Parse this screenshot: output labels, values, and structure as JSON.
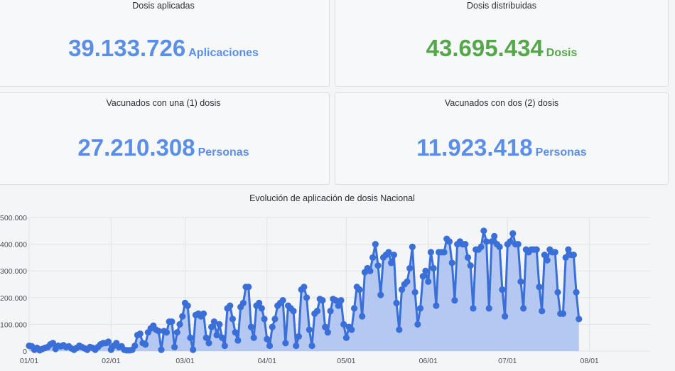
{
  "stats": {
    "applied": {
      "title": "Dosis aplicadas",
      "value": "39.133.726",
      "unit": "Aplicaciones",
      "color": "#5b8ee6"
    },
    "distributed": {
      "title": "Dosis distribuidas",
      "value": "43.695.434",
      "unit": "Dosis",
      "color": "#56a64b"
    },
    "one_dose": {
      "title": "Vacunados con una (1) dosis",
      "value": "27.210.308",
      "unit": "Personas",
      "color": "#5b8ee6"
    },
    "two_doses": {
      "title": "Vacunados con dos (2) dosis",
      "value": "11.923.418",
      "unit": "Personas",
      "color": "#5b8ee6"
    }
  },
  "chart_data": {
    "type": "area",
    "title": "Evolución de aplicación de dosis Nacional",
    "xlabel": "",
    "ylabel": "",
    "ylim": [
      0,
      500000
    ],
    "yticks": [
      0,
      100000,
      200000,
      300000,
      400000,
      500000
    ],
    "ytick_labels": [
      "0",
      "100.000",
      "200.000",
      "300.000",
      "400.000",
      "500.000"
    ],
    "xtick_labels": [
      "01/01",
      "02/01",
      "03/01",
      "04/01",
      "05/01",
      "06/01",
      "07/01",
      "08/01"
    ],
    "xtick_days": [
      0,
      31,
      59,
      90,
      120,
      151,
      181,
      212
    ],
    "grid": true,
    "legend": "none",
    "line_color": "#3a6fd8",
    "fill_color": "#a9bff0",
    "series": [
      {
        "values": [
          20000,
          18000,
          5000,
          12000,
          3000,
          8000,
          12000,
          15000,
          25000,
          30000,
          8000,
          20000,
          18000,
          22000,
          15000,
          18000,
          10000,
          5000,
          12000,
          20000,
          15000,
          10000,
          5000,
          15000,
          12000,
          5000,
          15000,
          25000,
          30000,
          30000,
          35000,
          5000,
          20000,
          30000,
          15000,
          18000,
          5000,
          3000,
          3000,
          5000,
          20000,
          60000,
          65000,
          30000,
          25000,
          70000,
          85000,
          95000,
          80000,
          75000,
          5000,
          75000,
          70000,
          110000,
          110000,
          15000,
          70000,
          100000,
          130000,
          180000,
          170000,
          50000,
          5000,
          135000,
          140000,
          130000,
          140000,
          50000,
          30000,
          90000,
          110000,
          60000,
          100000,
          50000,
          20000,
          160000,
          170000,
          120000,
          70000,
          40000,
          165000,
          180000,
          240000,
          240000,
          90000,
          50000,
          170000,
          180000,
          160000,
          120000,
          45000,
          20000,
          90000,
          120000,
          170000,
          180000,
          190000,
          30000,
          170000,
          160000,
          150000,
          20000,
          55000,
          230000,
          240000,
          200000,
          80000,
          20000,
          140000,
          150000,
          195000,
          190000,
          90000,
          70000,
          150000,
          195000,
          190000,
          170000,
          190000,
          100000,
          50000,
          90000,
          80000,
          160000,
          240000,
          230000,
          130000,
          295000,
          310000,
          300000,
          350000,
          400000,
          320000,
          210000,
          350000,
          360000,
          370000,
          330000,
          360000,
          180000,
          80000,
          230000,
          250000,
          260000,
          310000,
          390000,
          220000,
          100000,
          160000,
          280000,
          300000,
          260000,
          370000,
          310000,
          170000,
          370000,
          370000,
          370000,
          420000,
          410000,
          330000,
          190000,
          400000,
          410000,
          400000,
          400000,
          350000,
          320000,
          160000,
          380000,
          380000,
          390000,
          450000,
          410000,
          160000,
          410000,
          430000,
          400000,
          390000,
          230000,
          130000,
          400000,
          410000,
          440000,
          400000,
          400000,
          260000,
          160000,
          380000,
          370000,
          380000,
          380000,
          380000,
          240000,
          150000,
          360000,
          340000,
          380000,
          370000,
          370000,
          220000,
          140000,
          140000,
          350000,
          380000,
          360000,
          360000,
          220000,
          120000
        ]
      }
    ]
  }
}
